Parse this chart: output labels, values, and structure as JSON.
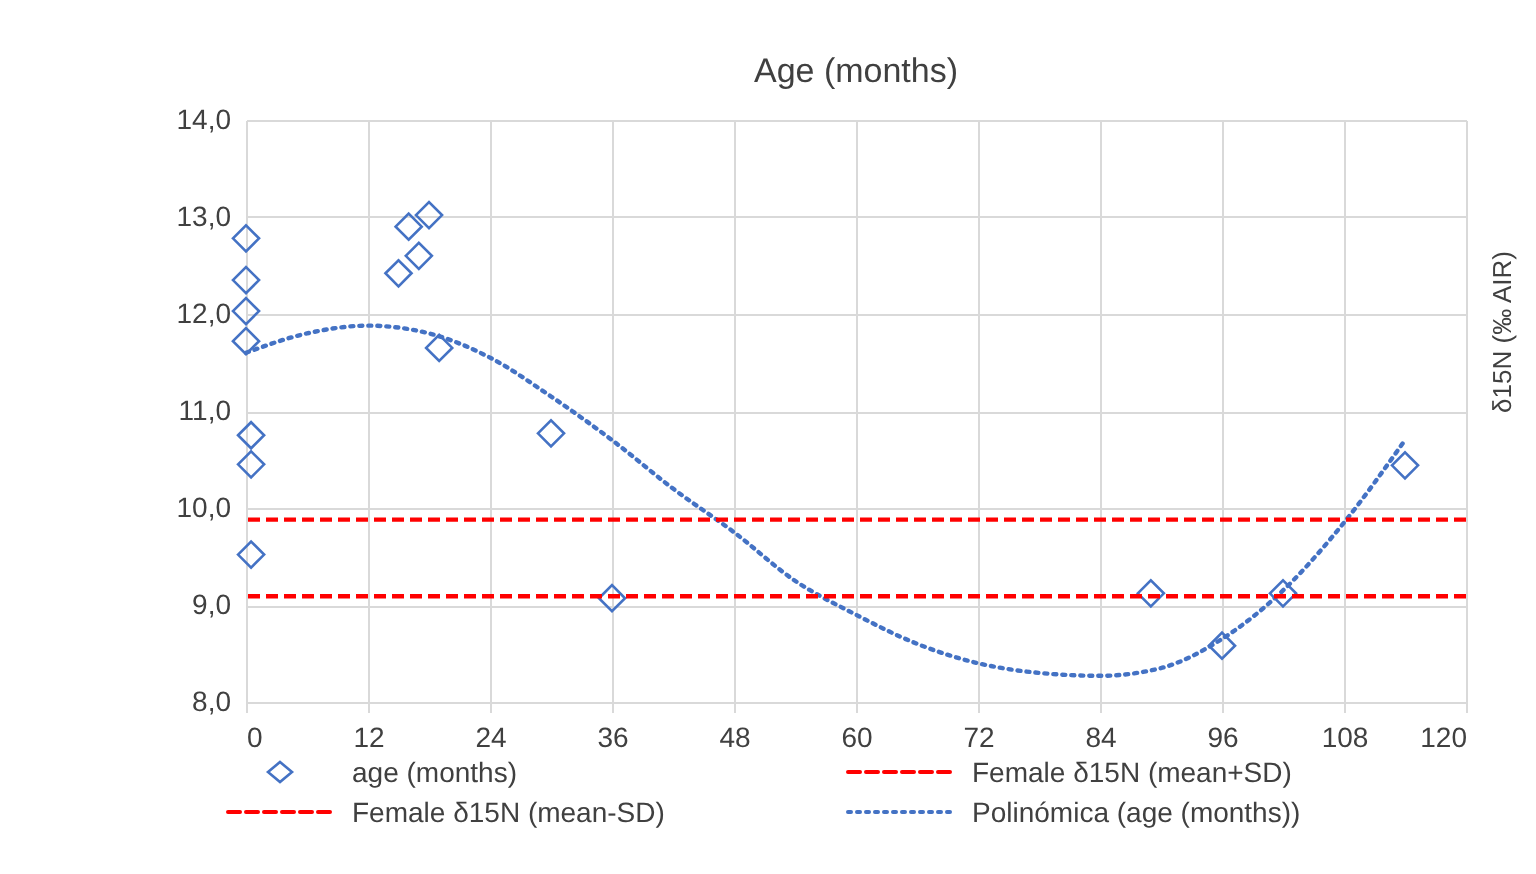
{
  "chart_data": {
    "type": "scatter",
    "title": "Age (months)",
    "ylabel": "δ15N (‰ AIR)",
    "xlim": [
      0,
      120
    ],
    "xticks": [
      0,
      12,
      24,
      36,
      48,
      60,
      72,
      84,
      96,
      108,
      120
    ],
    "ylim": [
      8,
      14
    ],
    "yticks": [
      {
        "value": 8,
        "label": "8,0"
      },
      {
        "value": 9,
        "label": "9,0"
      },
      {
        "value": 10,
        "label": "10,0"
      },
      {
        "value": 11,
        "label": "11,0"
      },
      {
        "value": 12,
        "label": "12,0"
      },
      {
        "value": 13,
        "label": "13,0"
      },
      {
        "value": 14,
        "label": "14,0"
      }
    ],
    "grid": true,
    "legend": "bottom",
    "series": [
      {
        "name": "age (months)",
        "marker": "diamond",
        "color": "#4472c4",
        "x": [
          0,
          0,
          0,
          0,
          0.5,
          0.5,
          0.5,
          15,
          16,
          17,
          18,
          19,
          30,
          36,
          89,
          96,
          102,
          114
        ],
        "values": [
          12.78,
          12.35,
          12.03,
          11.72,
          10.75,
          10.45,
          9.52,
          12.42,
          12.9,
          12.6,
          13.02,
          11.65,
          10.77,
          9.07,
          9.12,
          8.58,
          9.12,
          10.44
        ]
      },
      {
        "name": "Polinómica (age (months))",
        "type": "line",
        "line_style": "dotted",
        "color": "#4472c4",
        "x": [
          0,
          6,
          12,
          18,
          24,
          30,
          36,
          42,
          48,
          54,
          60,
          66,
          72,
          78,
          84,
          90,
          96,
          102,
          108,
          114
        ],
        "values": [
          11.6,
          11.8,
          11.88,
          11.8,
          11.55,
          11.15,
          10.7,
          10.2,
          9.75,
          9.25,
          8.9,
          8.6,
          8.4,
          8.3,
          8.27,
          8.35,
          8.65,
          9.15,
          9.85,
          10.7
        ]
      }
    ],
    "ref_lines": [
      {
        "axis": "y",
        "value": 9.88,
        "label": "Female δ15N (mean+SD)",
        "color": "#ff0000",
        "line_style": "dashed"
      },
      {
        "axis": "y",
        "value": 9.09,
        "label": "Female δ15N (mean-SD)",
        "color": "#ff0000",
        "line_style": "dashed"
      }
    ]
  }
}
